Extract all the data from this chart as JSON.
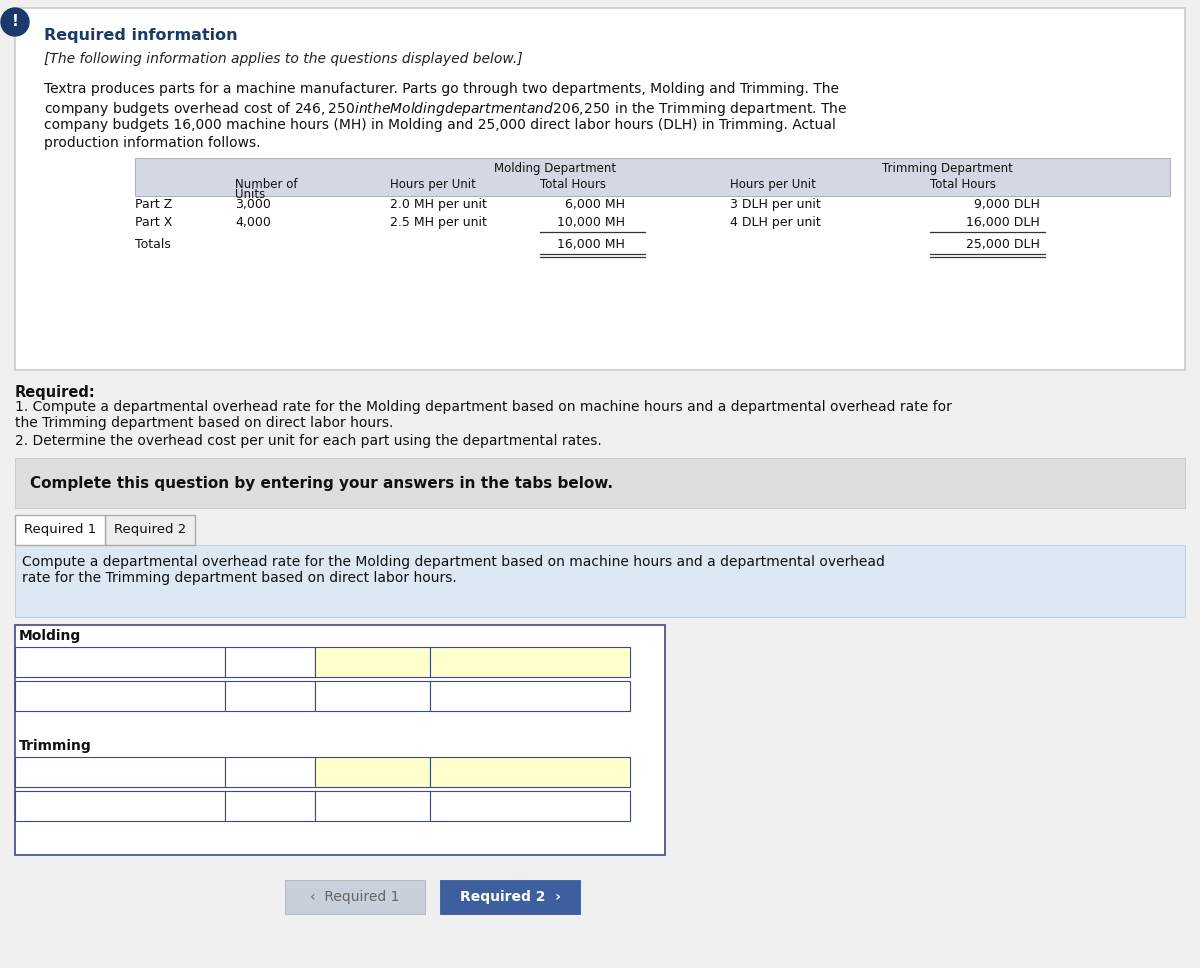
{
  "page_bg": "#f0f0f0",
  "card_bg": "#ffffff",
  "card_border": "#cccccc",
  "exclamation_bg": "#1a3a6b",
  "title": "Required information",
  "title_color": "#1a3a6b",
  "italic_line": "[The following information applies to the questions displayed below.]",
  "body_lines": [
    "Textra produces parts for a machine manufacturer. Parts go through two departments, Molding and Trimming. The",
    "company budgets overhead cost of $246,250 in the Molding department and $206,250 in the Trimming department. The",
    "company budgets 16,000 machine hours (MH) in Molding and 25,000 direct labor hours (DLH) in Trimming. Actual",
    "production information follows."
  ],
  "table_header_bg": "#d4d8e4",
  "table_row_bg": "#ffffff",
  "rows": [
    {
      "label": "Part Z",
      "units": "3,000",
      "mold_hpu": "2.0 MH per unit",
      "mold_total": "6,000 MH",
      "trim_hpu": "3 DLH per unit",
      "trim_total": "9,000 DLH"
    },
    {
      "label": "Part X",
      "units": "4,000",
      "mold_hpu": "2.5 MH per unit",
      "mold_total": "10,000 MH",
      "trim_hpu": "4 DLH per unit",
      "trim_total": "16,000 DLH"
    },
    {
      "label": "Totals",
      "units": "",
      "mold_hpu": "",
      "mold_total": "16,000 MH",
      "trim_hpu": "",
      "trim_total": "25,000 DLH"
    }
  ],
  "required_label": "Required:",
  "req1_line1": "1. Compute a departmental overhead rate for the Molding department based on machine hours and a departmental overhead rate for",
  "req1_line2": "the Trimming department based on direct labor hours.",
  "req2_text": "2. Determine the overhead cost per unit for each part using the departmental rates.",
  "complete_bg": "#dedede",
  "complete_text": "Complete this question by entering your answers in the tabs below.",
  "tab1_label": "Required 1",
  "tab2_label": "Required 2",
  "tab_active_bg": "#ffffff",
  "tab_inactive_bg": "#eeeeee",
  "tab_border": "#aaaaaa",
  "tab_content_bg": "#dde8f5",
  "tab_instr_line1": "Compute a departmental overhead rate for the Molding department based on machine hours and a departmental overhead",
  "tab_instr_line2": "rate for the Trimming department based on direct labor hours.",
  "form_border_color": "#3a4a8a",
  "form_cell_yellow": "#ffffcc",
  "form_cell_white": "#ffffff",
  "form_label1": "Molding",
  "form_label2": "Trimming",
  "btn1_bg": "#c8d0dc",
  "btn1_text": "‹  Required 1",
  "btn1_color": "#666666",
  "btn2_bg": "#3d5fa0",
  "btn2_text": "Required 2  ›",
  "btn2_color": "#ffffff"
}
